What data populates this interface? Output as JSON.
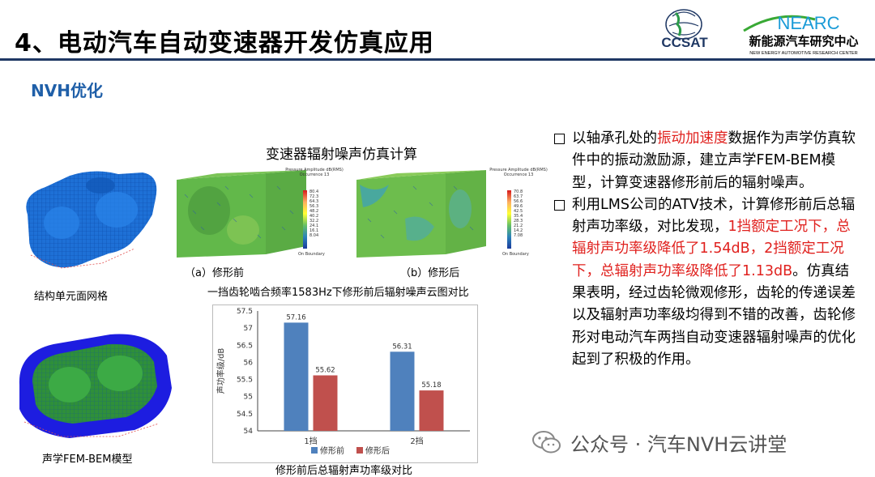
{
  "header": {
    "title": "4、电动汽车自动变速器开发仿真应用",
    "logo_ccsat": "CCSAT",
    "logo_nearc_main": "NEARC",
    "logo_nearc_cn": "新能源汽车研究中心",
    "logo_nearc_en": "NEW ENERGY AUTOMOTIVE RESEARCH CENTER"
  },
  "section": {
    "title": "NVH优化"
  },
  "figures": {
    "mesh_caption": "结构单元面网格",
    "fem_bem_caption": "声学FEM-BEM模型",
    "cloud_title": "变速器辐射噪声仿真计算",
    "before_label": "（a）修形前",
    "after_label": "（b）修形后",
    "cloud_caption": "一挡齿轮啮合频率1583Hz下修形前后辐射噪声云图对比",
    "legend_left": {
      "title_line1": "Pressure Amplitude dB(RMS)",
      "title_line2": "Occurrence 13",
      "values": [
        "80.4",
        "72.3",
        "64.3",
        "56.3",
        "48.2",
        "40.2",
        "32.2",
        "24.1",
        "16.1",
        "8.04"
      ],
      "bottom": "On Boundary"
    },
    "legend_right": {
      "title_line1": "Pressure Amplitude dB(RMS)",
      "title_line2": "Occurrence 13",
      "values": [
        "70.8",
        "63.7",
        "56.6",
        "49.6",
        "42.5",
        "35.4",
        "28.3",
        "21.2",
        "14.2",
        "7.08"
      ],
      "bottom": "On Boundary"
    },
    "chart_caption": "修形前后总辐射声功率级对比"
  },
  "chart_data": {
    "type": "bar",
    "categories": [
      "1挡",
      "2挡"
    ],
    "series": [
      {
        "name": "修形前",
        "values": [
          57.16,
          56.31
        ],
        "color": "#4f81bd"
      },
      {
        "name": "修形后",
        "values": [
          55.62,
          55.18
        ],
        "color": "#c0504d"
      }
    ],
    "data_labels": [
      [
        "57.16",
        "56.31"
      ],
      [
        "55.62",
        "55.18"
      ]
    ],
    "ylabel": "声功率级/dB",
    "ylim": [
      54,
      57.5
    ],
    "yticks": [
      "54",
      "54.5",
      "55",
      "55.5",
      "56",
      "56.5",
      "57",
      "57.5"
    ],
    "legend_position": "bottom"
  },
  "bullets": [
    {
      "parts": [
        {
          "text": "以轴承孔处的",
          "red": false
        },
        {
          "text": "振动加速度",
          "red": true
        },
        {
          "text": "数据作为声学仿真软件中的振动激励源，建立声学FEM-BEM模型，计算变速器修形前后的辐射噪声。",
          "red": false
        }
      ]
    },
    {
      "parts": [
        {
          "text": "利用LMS公司的ATV技术，计算修形前后总辐射声功率级，对比发现，",
          "red": false
        },
        {
          "text": "1挡额定工况下，总辐射声功率级降低了1.54dB，2挡额定工况下，总辐射声功率级降低了1.13dB",
          "red": true
        },
        {
          "text": "。仿真结果表明，经过齿轮微观修形，齿轮的传递误差以及辐射声功率级均得到不错的改善，齿轮修形对电动汽车两挡自动变速器辐射噪声的优化起到了积极的作用。",
          "red": false
        }
      ]
    }
  ],
  "watermark": {
    "text": "公众号 · 汽车NVH云讲堂"
  },
  "colors": {
    "accent_blue": "#1f5fa8",
    "rule": "#1f3864",
    "highlight_red": "#e0211e"
  }
}
